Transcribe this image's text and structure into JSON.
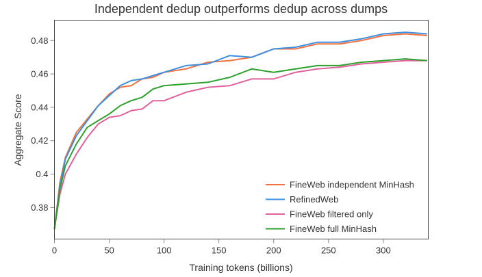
{
  "chart_data": {
    "type": "line",
    "title": "Independent dedup outperforms dedup across dumps",
    "xlabel": "Training tokens (billions)",
    "ylabel": "Aggregate Score",
    "xlim": [
      0,
      341
    ],
    "ylim": [
      0.3611,
      0.4922
    ],
    "xticks": [
      0,
      50,
      100,
      150,
      200,
      250,
      300
    ],
    "xtick_labels": [
      "0",
      "50",
      "100",
      "150",
      "200",
      "250",
      "300"
    ],
    "yticks": [
      0.38,
      0.4,
      0.42,
      0.44,
      0.46,
      0.48
    ],
    "ytick_labels": [
      "0.38",
      "0.4",
      "0.42",
      "0.44",
      "0.46",
      "0.48"
    ],
    "grid": false,
    "legend_position": "bottom-right",
    "x": [
      0,
      5,
      10,
      20,
      30,
      40,
      50,
      60,
      70,
      80,
      90,
      100,
      120,
      140,
      160,
      180,
      200,
      220,
      240,
      260,
      280,
      300,
      320,
      340
    ],
    "series": [
      {
        "name": "FineWeb independent MinHash",
        "color": "#f07140",
        "values": [
          0.367,
          0.395,
          0.41,
          0.425,
          0.433,
          0.441,
          0.448,
          0.452,
          0.453,
          0.457,
          0.458,
          0.461,
          0.463,
          0.467,
          0.468,
          0.47,
          0.475,
          0.475,
          0.478,
          0.478,
          0.48,
          0.483,
          0.484,
          0.483
        ]
      },
      {
        "name": "RefinedWeb",
        "color": "#3d8fe0",
        "values": [
          0.367,
          0.393,
          0.409,
          0.423,
          0.432,
          0.441,
          0.447,
          0.453,
          0.456,
          0.457,
          0.459,
          0.461,
          0.465,
          0.466,
          0.471,
          0.47,
          0.475,
          0.476,
          0.479,
          0.479,
          0.481,
          0.484,
          0.485,
          0.484
        ]
      },
      {
        "name": "FineWeb filtered only",
        "color": "#e0609c",
        "values": [
          0.367,
          0.388,
          0.4,
          0.412,
          0.422,
          0.43,
          0.434,
          0.435,
          0.438,
          0.439,
          0.444,
          0.444,
          0.449,
          0.452,
          0.453,
          0.457,
          0.457,
          0.461,
          0.463,
          0.464,
          0.466,
          0.467,
          0.468,
          0.468
        ]
      },
      {
        "name": "FineWeb full MinHash",
        "color": "#2ca02c",
        "values": [
          0.367,
          0.391,
          0.405,
          0.418,
          0.428,
          0.432,
          0.436,
          0.441,
          0.444,
          0.446,
          0.451,
          0.453,
          0.454,
          0.455,
          0.458,
          0.463,
          0.461,
          0.463,
          0.465,
          0.465,
          0.467,
          0.468,
          0.469,
          0.468
        ]
      }
    ]
  }
}
